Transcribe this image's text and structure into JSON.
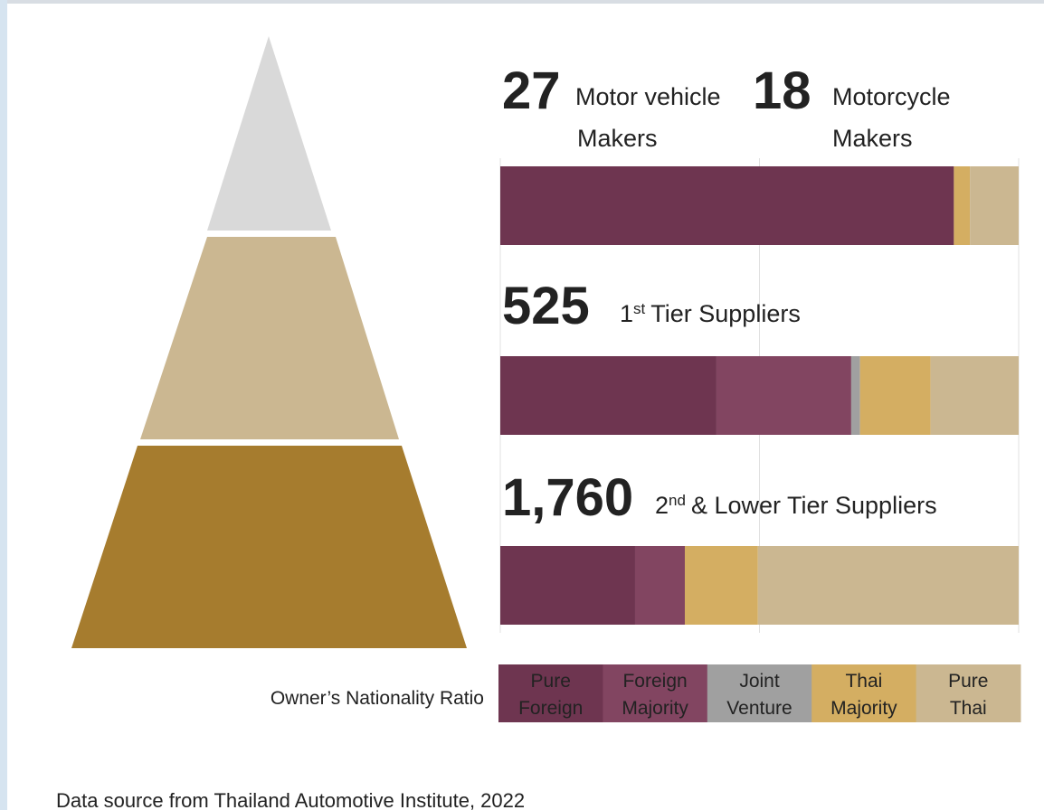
{
  "chart_data": {
    "type": "stacked_bar_horizontal",
    "headers": [
      [
        {
          "count": "27",
          "lines": [
            "Motor vehicle",
            "Makers"
          ]
        },
        {
          "count": "18",
          "lines": [
            "Motorcycle",
            "Makers"
          ]
        }
      ],
      [
        {
          "count": "525",
          "ordinal": "1",
          "sup": "st",
          "rest": "Tier Suppliers"
        }
      ],
      [
        {
          "count": "1,760",
          "ordinal": "2",
          "sup": "nd",
          "rest": "& Lower Tier Suppliers"
        }
      ]
    ],
    "xlim": [
      0,
      100
    ],
    "xticks": [
      0,
      50,
      100
    ],
    "grid": true,
    "legend_title": "Owner’s Nationality Ratio",
    "series": [
      {
        "name": "Pure Foreign",
        "color": "#6e3550",
        "values": [
          87.5,
          41.7,
          26.0
        ]
      },
      {
        "name": "Foreign Majority",
        "color": "#824561",
        "values": [
          0,
          26.0,
          9.6
        ]
      },
      {
        "name": "Joint Venture",
        "color": "#a0a0a0",
        "values": [
          0,
          1.7,
          0
        ]
      },
      {
        "name": "Thai Majority",
        "color": "#d4ae62",
        "values": [
          3.1,
          13.6,
          14.1
        ]
      },
      {
        "name": "Pure Thai",
        "color": "#cbb791",
        "values": [
          9.4,
          17.0,
          50.3
        ]
      }
    ],
    "pyramid_colors": [
      "#d9d9d9",
      "#cbb791",
      "#a67c2e"
    ],
    "source": "Data source from Thailand Automotive Institute, 2022"
  }
}
